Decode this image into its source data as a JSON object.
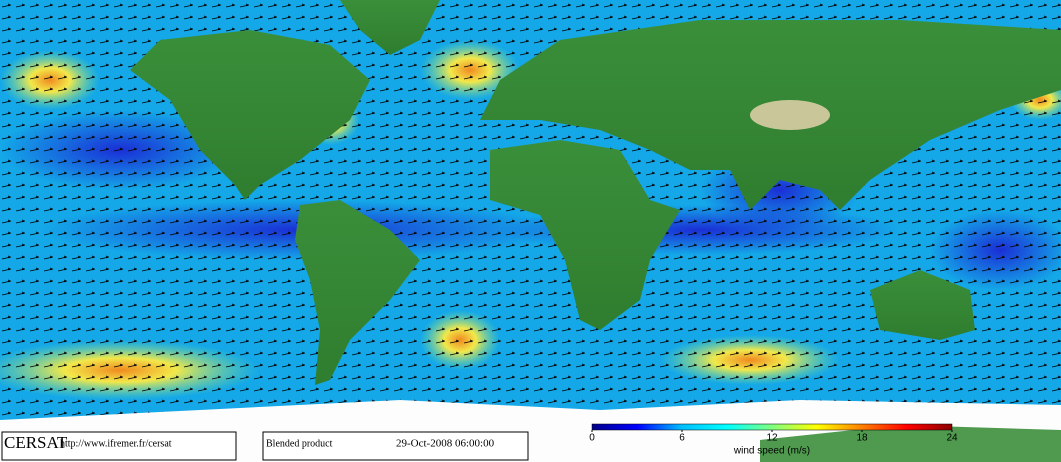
{
  "footer": {
    "logo": "CERSAT",
    "url": "http://www.ifremer.fr/cersat",
    "product": "Blended product",
    "timestamp": "29-Oct-2008 06:00:00"
  },
  "colorbar": {
    "label": "wind speed (m/s)",
    "lim": [
      0,
      24
    ],
    "ticks": [
      0,
      6,
      12,
      18,
      24
    ],
    "colors": [
      "#00008b",
      "#0000ff",
      "#00bfff",
      "#00ffff",
      "#7fff7f",
      "#ffff00",
      "#ff7f00",
      "#ff0000",
      "#8b0000"
    ]
  }
}
